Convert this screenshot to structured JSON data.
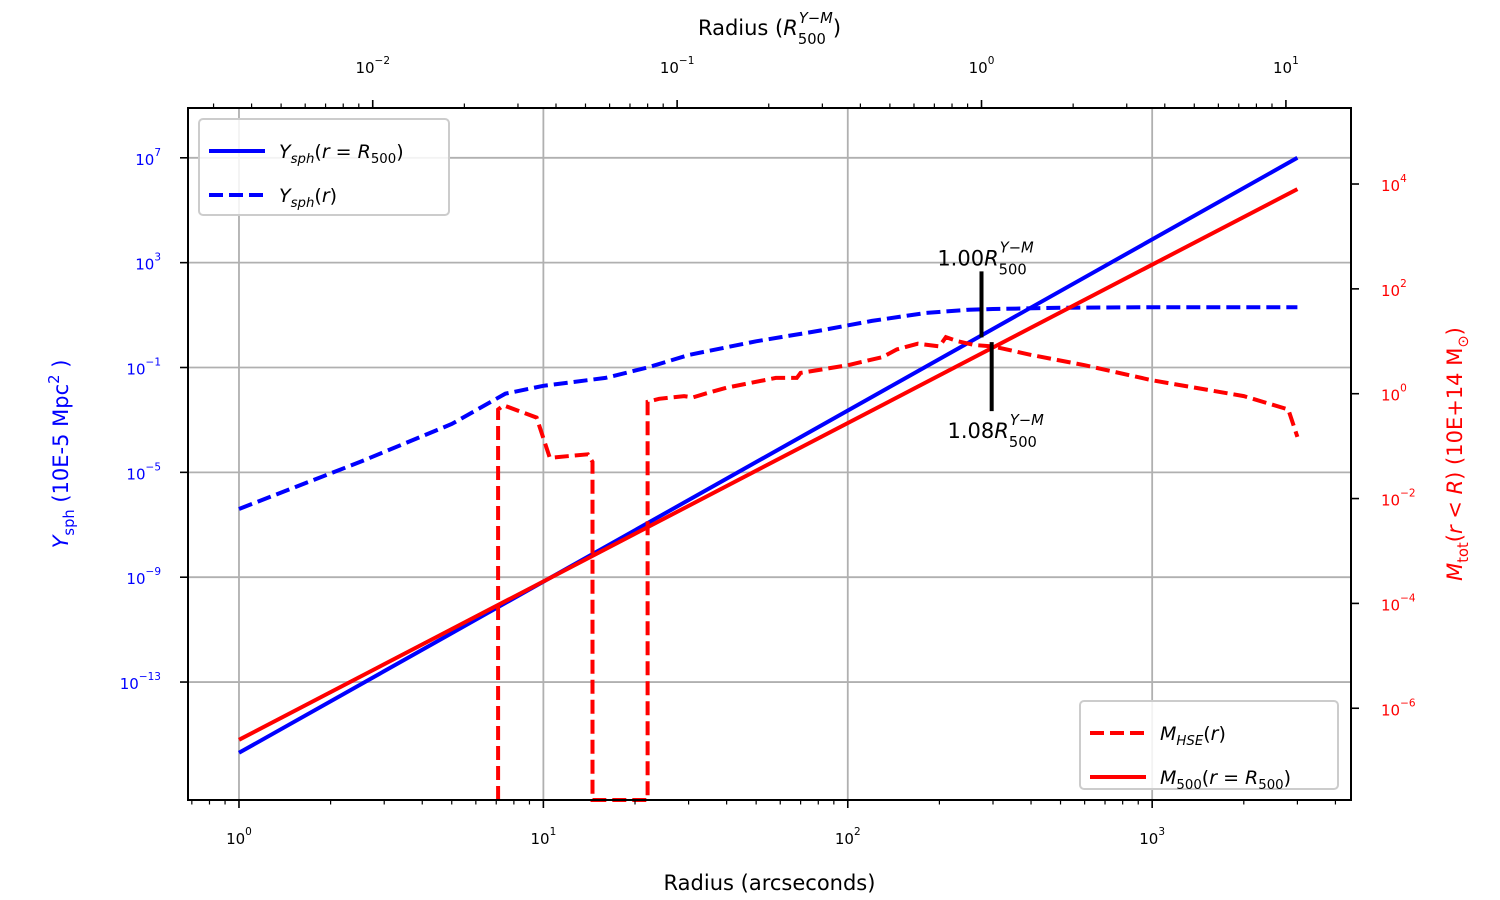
{
  "chart_data": {
    "type": "line",
    "x_scale": "log",
    "xlabel": "Radius (arcseconds)",
    "xlim": [
      0.68,
      4500
    ],
    "x_ticks": [
      {
        "value": 1,
        "label": "10^0"
      },
      {
        "value": 10,
        "label": "10^1"
      },
      {
        "value": 100,
        "label": "10^2"
      },
      {
        "value": 1000,
        "label": "10^3"
      }
    ],
    "top_xlabel": "Radius (R_500^{Y-M})",
    "top_axis_factor": 0.003636,
    "top_ticks": [
      {
        "value": 0.01,
        "label": "10^-2"
      },
      {
        "value": 0.1,
        "label": "10^-1"
      },
      {
        "value": 1,
        "label": "10^0"
      },
      {
        "value": 10,
        "label": "10^1"
      }
    ],
    "left_ylabel": "Y_sph (10E-5 Mpc^2 )",
    "left_ylim_log10": [
      -17.5,
      8.9
    ],
    "left_ticks": [
      {
        "value": 10000000.0,
        "label": "10^7"
      },
      {
        "value": 1000.0,
        "label": "10^3"
      },
      {
        "value": 0.1,
        "label": "10^-1"
      },
      {
        "value": 1e-05,
        "label": "10^-5"
      },
      {
        "value": 1e-09,
        "label": "10^-9"
      },
      {
        "value": 1e-13,
        "label": "10^-13"
      }
    ],
    "right_ylabel": "M_tot(r<R) (10E+14 M_sun)",
    "right_ylim_log10": [
      -7.75,
      5.45
    ],
    "right_ticks": [
      {
        "value": 10000.0,
        "label": "10^4"
      },
      {
        "value": 100,
        "label": "10^2"
      },
      {
        "value": 1,
        "label": "10^0"
      },
      {
        "value": 0.01,
        "label": "10^-2"
      },
      {
        "value": 0.0001,
        "label": "10^-4"
      },
      {
        "value": 1e-06,
        "label": "10^-6"
      }
    ],
    "grid": true,
    "series": [
      {
        "name": "Y_sph(r=R_500)",
        "axis": "left",
        "style": "solid",
        "color": "#0000ff",
        "x": [
          1,
          3000
        ],
        "y": [
          2e-16,
          10000000.0
        ]
      },
      {
        "name": "Y_sph(r)",
        "axis": "left",
        "style": "dashed",
        "color": "#0000ff",
        "x": [
          1,
          2.5,
          5,
          7.5,
          10,
          16,
          22,
          30,
          50,
          80,
          120,
          180,
          250,
          300,
          500,
          1000,
          3000
        ],
        "y": [
          4e-07,
          2.5e-05,
          0.0007,
          0.01,
          0.02,
          0.04,
          0.1,
          0.3,
          1.0,
          2.5,
          6,
          12,
          16,
          17,
          19,
          20,
          20
        ]
      },
      {
        "name": "M_HSE(r)",
        "axis": "right",
        "style": "dashed",
        "color": "#ff0000",
        "x": [
          7.1,
          7.1,
          7.4,
          9.5,
          10.5,
          14,
          14.5,
          14.5,
          22,
          22,
          24,
          29,
          31,
          34,
          40,
          58,
          68,
          70,
          100,
          130,
          145,
          170,
          200,
          210,
          230,
          260,
          300,
          400,
          600,
          1000,
          2000,
          2800,
          3000
        ],
        "y": [
          1e-08,
          0.5,
          0.6,
          0.35,
          0.06,
          0.07,
          0.05,
          1e-08,
          1e-08,
          0.7,
          0.8,
          0.9,
          0.85,
          1.0,
          1.3,
          2.0,
          2.0,
          2.5,
          3.5,
          5,
          7,
          9,
          8,
          12,
          10,
          8.5,
          8,
          5.5,
          3.5,
          1.8,
          0.9,
          0.5,
          0.15
        ]
      },
      {
        "name": "M_500(r=R_500)",
        "axis": "right",
        "style": "solid",
        "color": "#ff0000",
        "x": [
          1,
          3000
        ],
        "y": [
          2.5e-07,
          8000
        ]
      }
    ],
    "legends": {
      "upper_left": [
        "Y_sph(r=R_500)",
        "Y_sph(r)"
      ],
      "lower_right": [
        "M_HSE(r)",
        "M_500(r=R_500)"
      ]
    },
    "annotations": [
      {
        "x": 275,
        "text_value": "1.00",
        "text_suffix": "R_500^{Y-M}",
        "anchor": "above"
      },
      {
        "x": 297,
        "text_value": "1.08",
        "text_suffix": "R_500^{Y-M}",
        "anchor": "below"
      }
    ],
    "colors": {
      "y_axis_left": "#0000ff",
      "y_axis_right": "#ff0000",
      "grid": "#b0b0b0",
      "annotation": "#000000"
    }
  }
}
